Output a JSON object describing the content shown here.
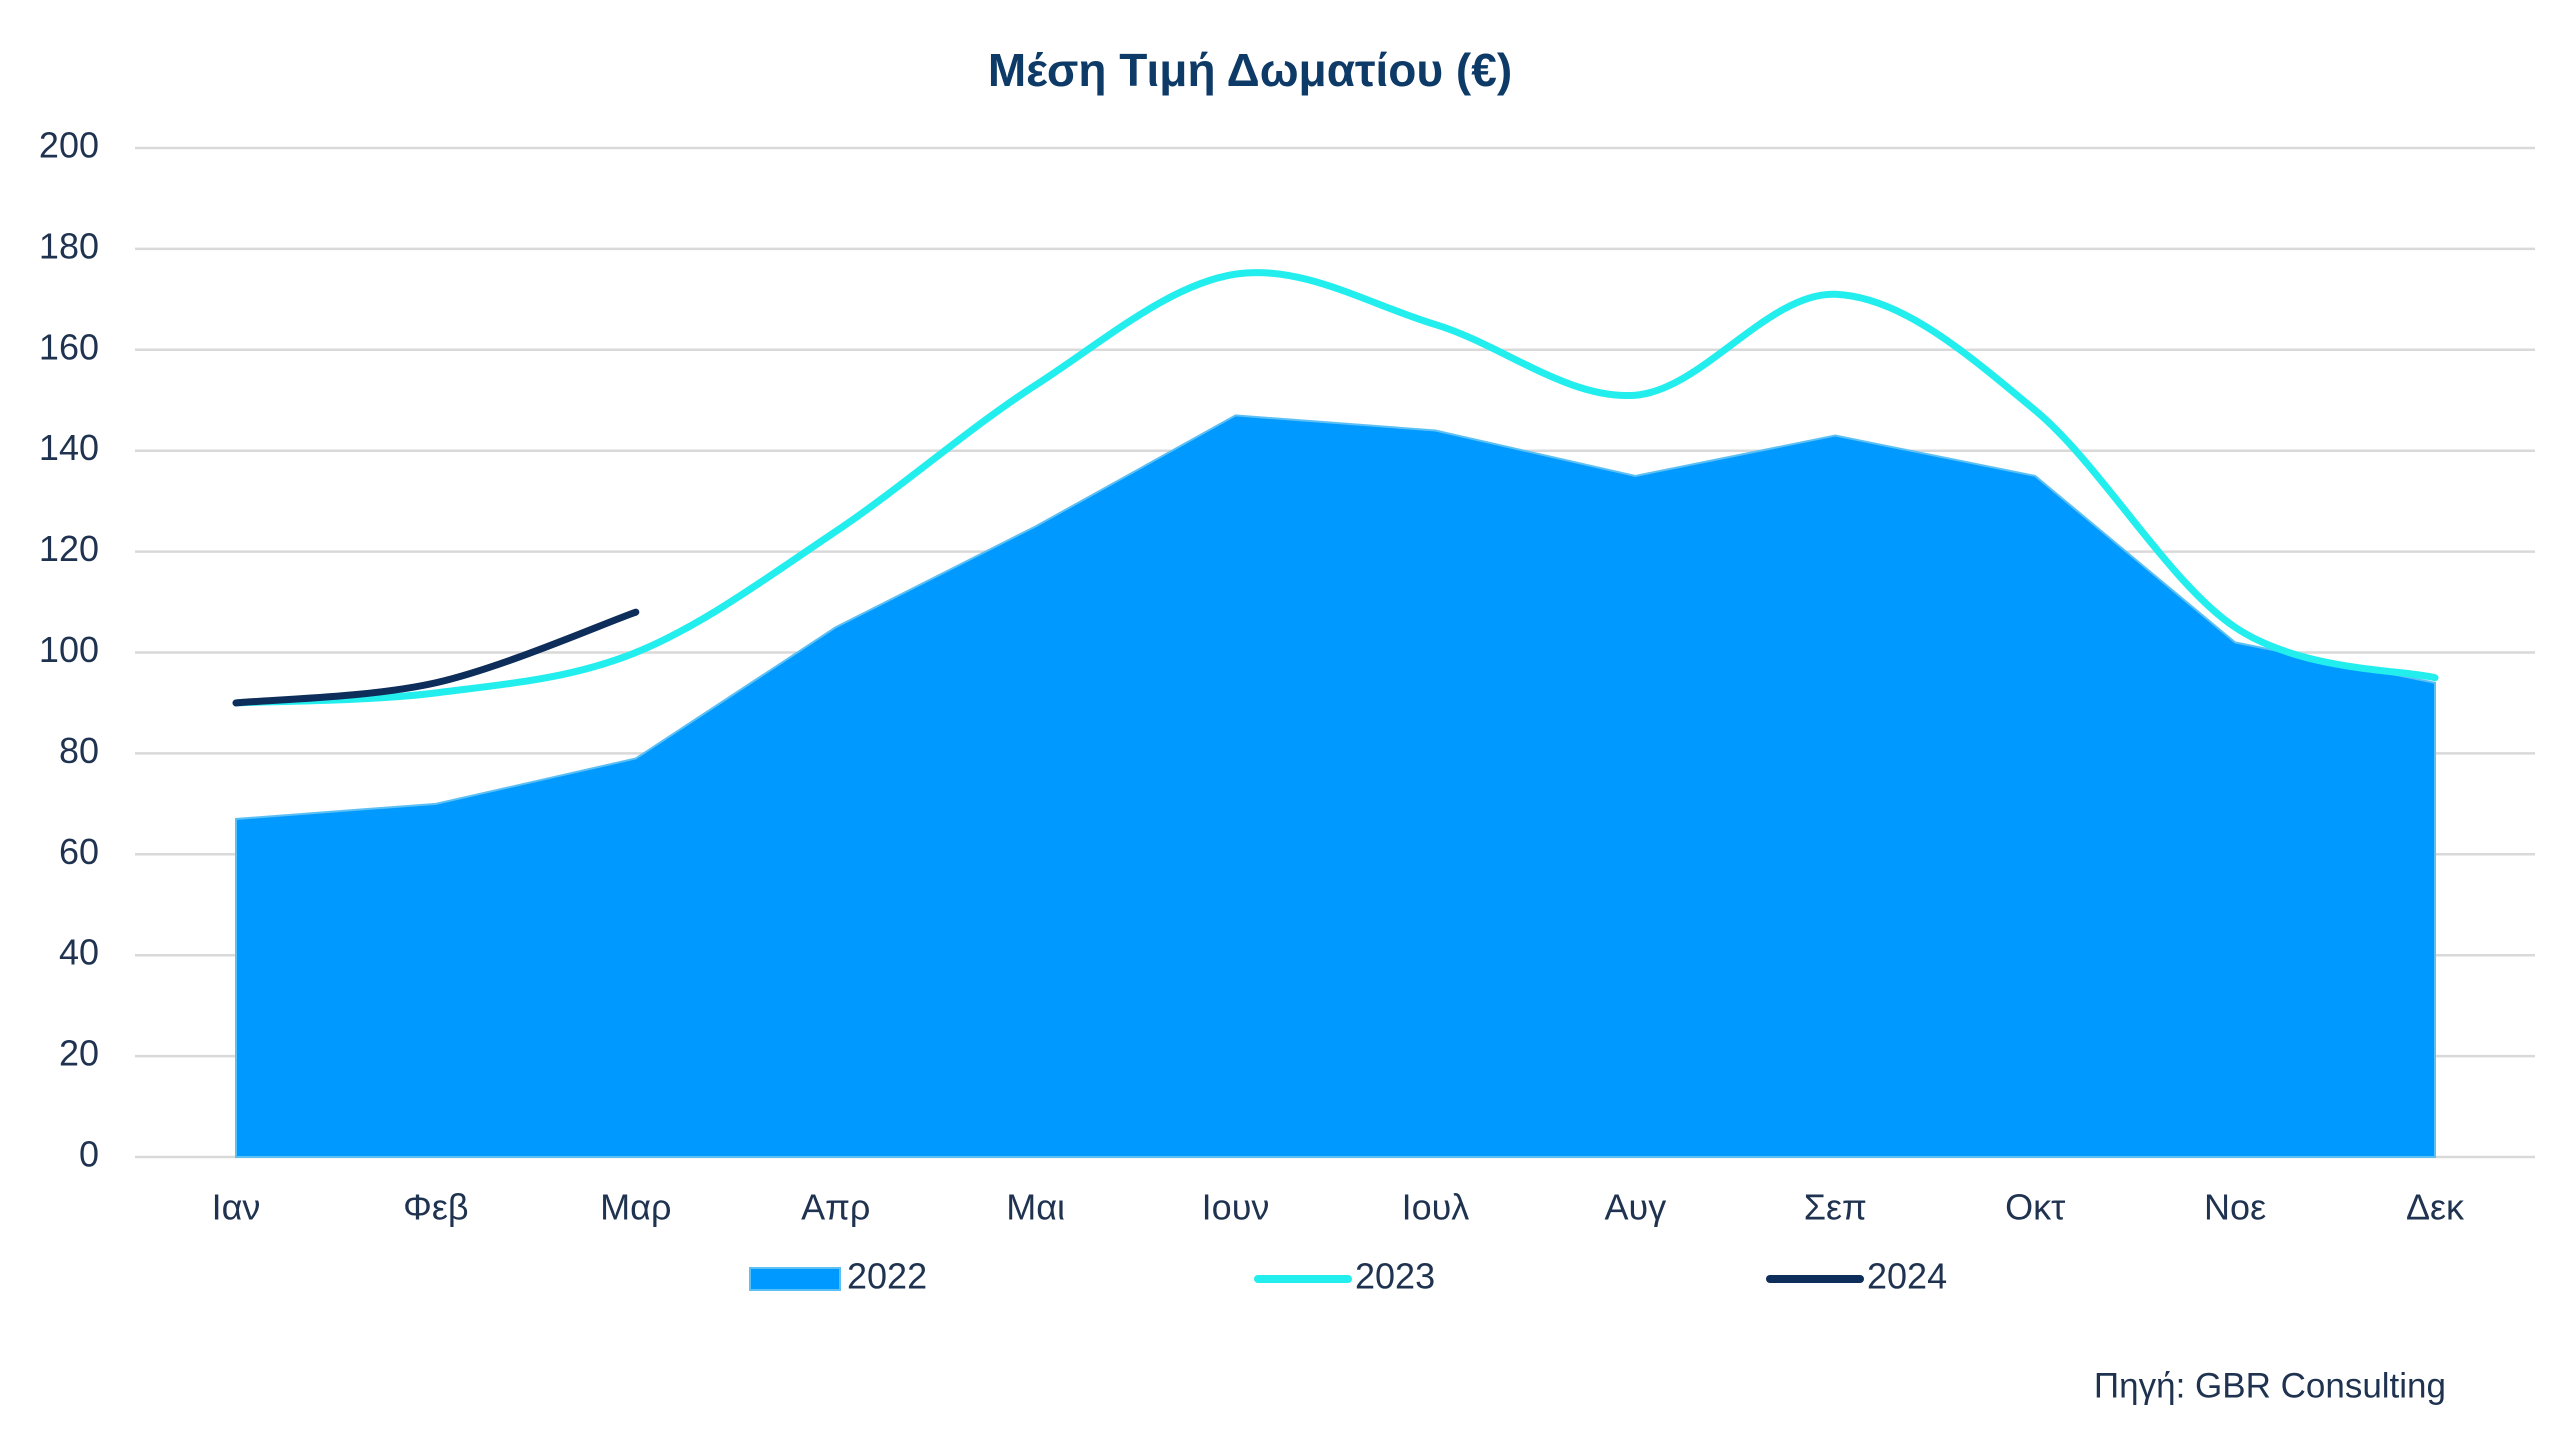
{
  "chart_data": {
    "type": "area_line",
    "title": "Μέση Τιμή Δωματίου (€)",
    "categories": [
      "Ιαν",
      "Φεβ",
      "Μαρ",
      "Απρ",
      "Μαι",
      "Ιουν",
      "Ιουλ",
      "Αυγ",
      "Σεπ",
      "Οκτ",
      "Νοε",
      "Δεκ"
    ],
    "series": [
      {
        "name": "2022",
        "color": "#0099ff",
        "kind": "area",
        "values": [
          67,
          70,
          79,
          105,
          125,
          147,
          144,
          135,
          143,
          135,
          102,
          94
        ]
      },
      {
        "name": "2023",
        "color": "#22eeee",
        "kind": "line",
        "values": [
          90,
          92,
          100,
          124,
          153,
          175,
          165,
          151,
          171,
          148,
          105,
          95
        ]
      },
      {
        "name": "2024",
        "color": "#0d2d5a",
        "kind": "line",
        "values": [
          90,
          94,
          108,
          null,
          null,
          null,
          null,
          null,
          null,
          null,
          null,
          null
        ]
      }
    ],
    "ylim": [
      0,
      200
    ],
    "yticks": [
      0,
      20,
      40,
      60,
      80,
      100,
      120,
      140,
      160,
      180,
      200
    ],
    "grid": true,
    "legend": "bottom",
    "source": "Πηγή: GBR Consulting"
  }
}
